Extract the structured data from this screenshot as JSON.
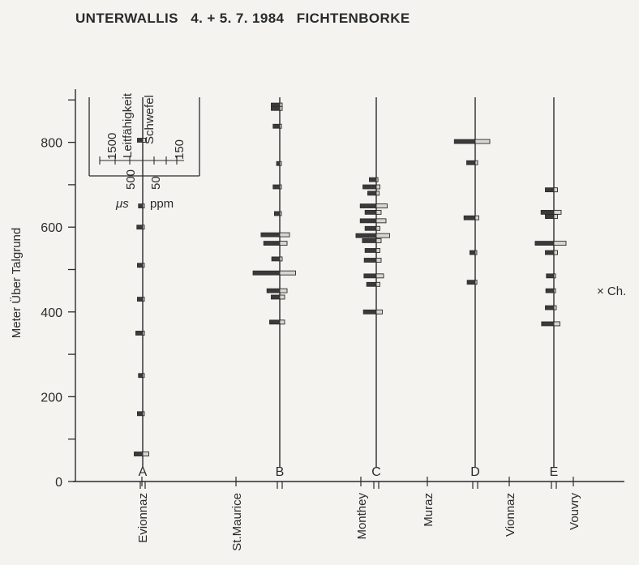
{
  "chart_data": {
    "type": "bar",
    "title": "UNTERWALLIS   4. + 5. 7. 1984   FICHTENBORKE",
    "ylabel": "Meter Über Talgrund",
    "ylim": [
      0,
      920
    ],
    "yticks": [
      0,
      200,
      400,
      600,
      800
    ],
    "legend": {
      "left_label": "Leitfähigkeit",
      "right_label": "Schwefel",
      "left_ticks": [
        "1500",
        "500"
      ],
      "right_ticks": [
        "50",
        "150"
      ],
      "left_unit": "μs",
      "right_unit": "ppm"
    },
    "annotation": "× Ch.",
    "stations": [
      {
        "label": "A",
        "place": "Evionnaz"
      },
      {
        "label": "B",
        "place": "St.Maurice"
      },
      {
        "label": "C",
        "place": "Monthey"
      },
      {
        "label": "D",
        "place": "Muraz"
      },
      {
        "label": "E",
        "place": "Vionnaz"
      },
      {
        "place": "Vouvry"
      }
    ],
    "profiles": [
      {
        "station": "A",
        "samples": [
          {
            "height": 805,
            "leitfaehigkeit": 200,
            "schwefel": 30
          },
          {
            "height": 650,
            "leitfaehigkeit": 160,
            "schwefel": 10
          },
          {
            "height": 600,
            "leitfaehigkeit": 220,
            "schwefel": 12
          },
          {
            "height": 510,
            "leitfaehigkeit": 200,
            "schwefel": 10
          },
          {
            "height": 430,
            "leitfaehigkeit": 200,
            "schwefel": 10
          },
          {
            "height": 350,
            "leitfaehigkeit": 260,
            "schwefel": 14
          },
          {
            "height": 250,
            "leitfaehigkeit": 160,
            "schwefel": 10
          },
          {
            "height": 160,
            "leitfaehigkeit": 200,
            "schwefel": 12
          },
          {
            "height": 65,
            "leitfaehigkeit": 320,
            "schwefel": 50
          }
        ]
      },
      {
        "station": "B",
        "samples": [
          {
            "height": 888,
            "leitfaehigkeit": 320,
            "schwefel": 20
          },
          {
            "height": 880,
            "leitfaehigkeit": 320,
            "schwefel": 20
          },
          {
            "height": 838,
            "leitfaehigkeit": 250,
            "schwefel": 14
          },
          {
            "height": 750,
            "leitfaehigkeit": 120,
            "schwefel": 8
          },
          {
            "height": 695,
            "leitfaehigkeit": 250,
            "schwefel": 12
          },
          {
            "height": 632,
            "leitfaehigkeit": 200,
            "schwefel": 12
          },
          {
            "height": 582,
            "leitfaehigkeit": 700,
            "schwefel": 80
          },
          {
            "height": 562,
            "leitfaehigkeit": 600,
            "schwefel": 60
          },
          {
            "height": 525,
            "leitfaehigkeit": 300,
            "schwefel": 20
          },
          {
            "height": 492,
            "leitfaehigkeit": 1000,
            "schwefel": 130
          },
          {
            "height": 450,
            "leitfaehigkeit": 480,
            "schwefel": 60
          },
          {
            "height": 435,
            "leitfaehigkeit": 320,
            "schwefel": 40
          },
          {
            "height": 376,
            "leitfaehigkeit": 380,
            "schwefel": 40
          }
        ]
      },
      {
        "station": "C",
        "samples": [
          {
            "height": 712,
            "leitfaehigkeit": 260,
            "schwefel": 14
          },
          {
            "height": 695,
            "leitfaehigkeit": 500,
            "schwefel": 30
          },
          {
            "height": 680,
            "leitfaehigkeit": 320,
            "schwefel": 24
          },
          {
            "height": 650,
            "leitfaehigkeit": 600,
            "schwefel": 90
          },
          {
            "height": 635,
            "leitfaehigkeit": 420,
            "schwefel": 40
          },
          {
            "height": 615,
            "leitfaehigkeit": 600,
            "schwefel": 80
          },
          {
            "height": 597,
            "leitfaehigkeit": 420,
            "schwefel": 30
          },
          {
            "height": 580,
            "leitfaehigkeit": 760,
            "schwefel": 110
          },
          {
            "height": 568,
            "leitfaehigkeit": 520,
            "schwefel": 40
          },
          {
            "height": 545,
            "leitfaehigkeit": 420,
            "schwefel": 30
          },
          {
            "height": 522,
            "leitfaehigkeit": 450,
            "schwefel": 40
          },
          {
            "height": 485,
            "leitfaehigkeit": 460,
            "schwefel": 60
          },
          {
            "height": 465,
            "leitfaehigkeit": 360,
            "schwefel": 30
          },
          {
            "height": 400,
            "leitfaehigkeit": 480,
            "schwefel": 50
          }
        ]
      },
      {
        "station": "D",
        "samples": [
          {
            "height": 802,
            "leitfaehigkeit": 780,
            "schwefel": 120
          },
          {
            "height": 752,
            "leitfaehigkeit": 320,
            "schwefel": 20
          },
          {
            "height": 622,
            "leitfaehigkeit": 420,
            "schwefel": 30
          },
          {
            "height": 540,
            "leitfaehigkeit": 200,
            "schwefel": 10
          },
          {
            "height": 470,
            "leitfaehigkeit": 300,
            "schwefel": 14
          }
        ]
      },
      {
        "station": "E",
        "samples": [
          {
            "height": 688,
            "leitfaehigkeit": 320,
            "schwefel": 30
          },
          {
            "height": 635,
            "leitfaehigkeit": 480,
            "schwefel": 60
          },
          {
            "height": 625,
            "leitfaehigkeit": 320,
            "schwefel": 30
          },
          {
            "height": 562,
            "leitfaehigkeit": 700,
            "schwefel": 100
          },
          {
            "height": 540,
            "leitfaehigkeit": 320,
            "schwefel": 30
          },
          {
            "height": 485,
            "leitfaehigkeit": 280,
            "schwefel": 14
          },
          {
            "height": 450,
            "leitfaehigkeit": 300,
            "schwefel": 14
          },
          {
            "height": 410,
            "leitfaehigkeit": 320,
            "schwefel": 20
          },
          {
            "height": 372,
            "leitfaehigkeit": 460,
            "schwefel": 50
          }
        ]
      }
    ]
  }
}
